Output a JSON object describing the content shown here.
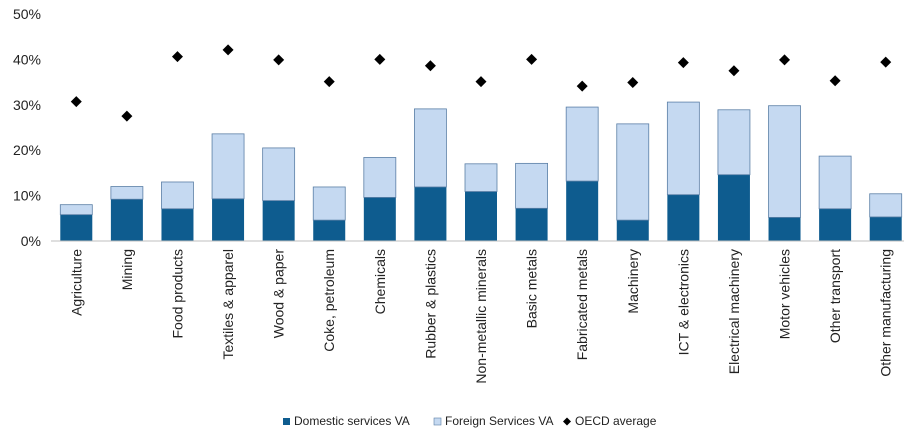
{
  "chart_data": {
    "type": "bar",
    "stacked": true,
    "categories": [
      "Agriculture",
      "Mining",
      "Food products",
      "Textiles & apparel",
      "Wood & paper",
      "Coke, petroleum",
      "Chemicals",
      "Rubber & plastics",
      "Non-metallic minerals",
      "Basic metals",
      "Fabricated metals",
      "Machinery",
      "ICT & electronics",
      "Electrical machinery",
      "Motor vehicles",
      "Other transport",
      "Other manufacturing"
    ],
    "series": [
      {
        "name": "Domestic services VA",
        "type": "bar",
        "color": "#0e5c8f",
        "values": [
          5.8,
          9.2,
          7.1,
          9.3,
          8.9,
          4.6,
          9.6,
          11.9,
          10.9,
          7.2,
          13.2,
          4.6,
          10.2,
          14.6,
          5.2,
          7.1,
          5.3
        ]
      },
      {
        "name": "Foreign Services VA",
        "type": "bar",
        "color": "#c5d9f1",
        "values": [
          2.2,
          2.8,
          5.9,
          14.3,
          11.6,
          7.3,
          8.8,
          17.2,
          6.1,
          9.9,
          16.3,
          21.2,
          20.4,
          14.3,
          24.6,
          11.6,
          5.1
        ]
      },
      {
        "name": "OECD average",
        "type": "scatter",
        "marker": "diamond",
        "color": "#000000",
        "values": [
          30.7,
          27.5,
          40.6,
          42.1,
          39.9,
          35.1,
          40.0,
          38.6,
          35.1,
          40.0,
          34.1,
          34.9,
          39.3,
          37.5,
          39.9,
          35.3,
          39.4
        ]
      }
    ],
    "yticks": [
      "0%",
      "10%",
      "20%",
      "30%",
      "40%",
      "50%"
    ],
    "ylim": [
      0,
      50
    ],
    "grid": false,
    "legend": "bottom"
  }
}
